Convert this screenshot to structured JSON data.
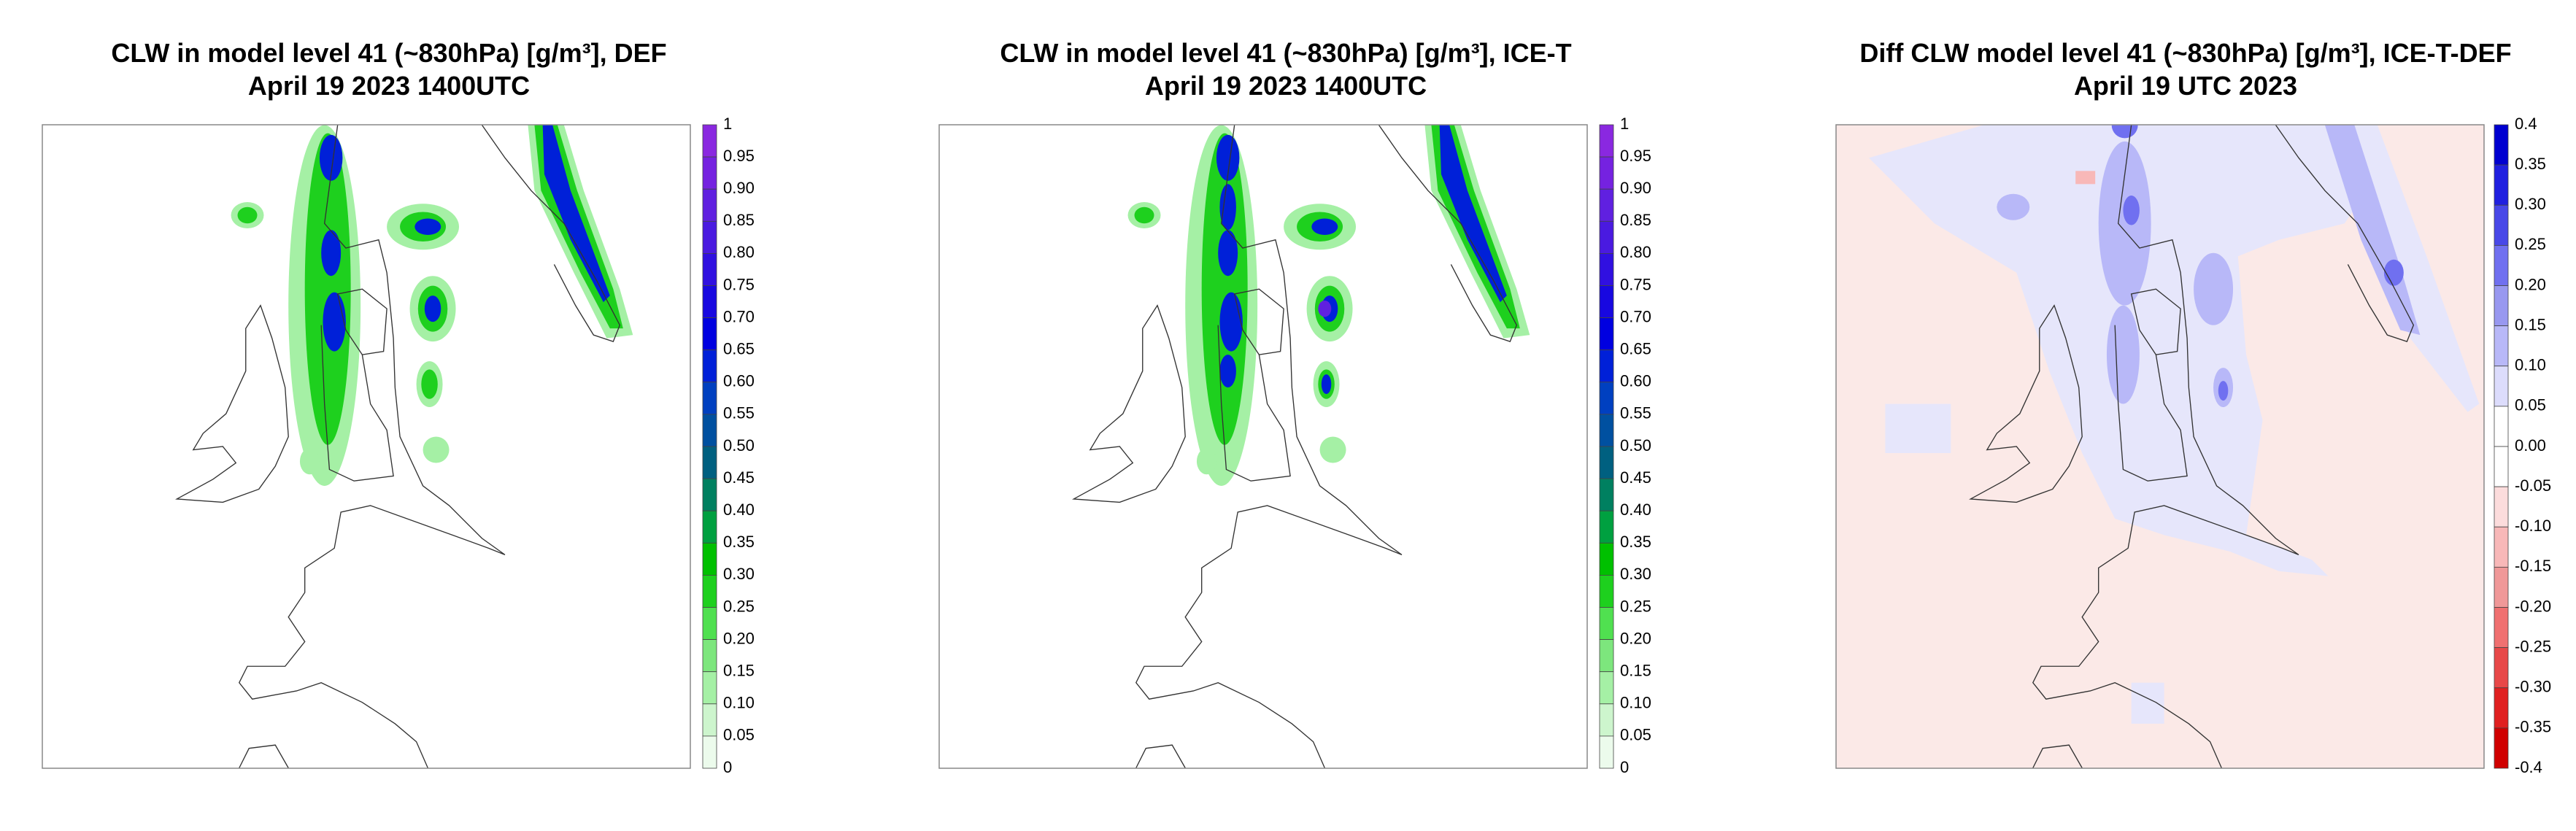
{
  "panels": [
    {
      "title": "CLW in model level 41 (~830hPa) [g/m³], DEF",
      "subtitle": "April 19 2023 1400UTC",
      "colorbar": {
        "labels": [
          "1",
          "0.95",
          "0.90",
          "0.85",
          "0.80",
          "0.75",
          "0.70",
          "0.65",
          "0.60",
          "0.55",
          "0.50",
          "0.45",
          "0.40",
          "0.35",
          "0.30",
          "0.25",
          "0.20",
          "0.15",
          "0.10",
          "0.05",
          "0"
        ],
        "colors": [
          "#8a28e0",
          "#7522e0",
          "#6020e0",
          "#4a1ae0",
          "#3010e0",
          "#1808e0",
          "#0000e0",
          "#0020d8",
          "#0040c0",
          "#0050a0",
          "#006080",
          "#008060",
          "#00a040",
          "#00c000",
          "#1ed01e",
          "#50e050",
          "#7de67d",
          "#a5f0a5",
          "#cdf5cd",
          "#ecfbec"
        ]
      }
    },
    {
      "title": "CLW in model level 41 (~830hPa) [g/m³], ICE-T",
      "subtitle": "April 19 2023 1400UTC",
      "colorbar": {
        "labels": [
          "1",
          "0.95",
          "0.90",
          "0.85",
          "0.80",
          "0.75",
          "0.70",
          "0.65",
          "0.60",
          "0.55",
          "0.50",
          "0.45",
          "0.40",
          "0.35",
          "0.30",
          "0.25",
          "0.20",
          "0.15",
          "0.10",
          "0.05",
          "0"
        ],
        "colors": [
          "#8a28e0",
          "#7522e0",
          "#6020e0",
          "#4a1ae0",
          "#3010e0",
          "#1808e0",
          "#0000e0",
          "#0020d8",
          "#0040c0",
          "#0050a0",
          "#006080",
          "#008060",
          "#00a040",
          "#00c000",
          "#1ed01e",
          "#50e050",
          "#7de67d",
          "#a5f0a5",
          "#cdf5cd",
          "#ecfbec"
        ]
      }
    },
    {
      "title": "Diff CLW model level 41 (~830hPa) [g/m³], ICE-T-DEF",
      "subtitle": "April 19 UTC 2023",
      "colorbar": {
        "labels": [
          "0.4",
          "0.35",
          "0.30",
          "0.25",
          "0.20",
          "0.15",
          "0.10",
          "0.05",
          "0.00",
          "-0.05",
          "-0.10",
          "-0.15",
          "-0.20",
          "-0.25",
          "-0.30",
          "-0.35",
          "-0.4"
        ],
        "colors": [
          "#0000d0",
          "#2020e0",
          "#4848e8",
          "#7070f0",
          "#9898f0",
          "#b8b8f8",
          "#dcdcfc",
          "#ffffff",
          "#ffffff",
          "#fcdcdc",
          "#f8b8b8",
          "#f09898",
          "#f07070",
          "#e84848",
          "#e02020",
          "#d00000"
        ]
      }
    }
  ]
}
